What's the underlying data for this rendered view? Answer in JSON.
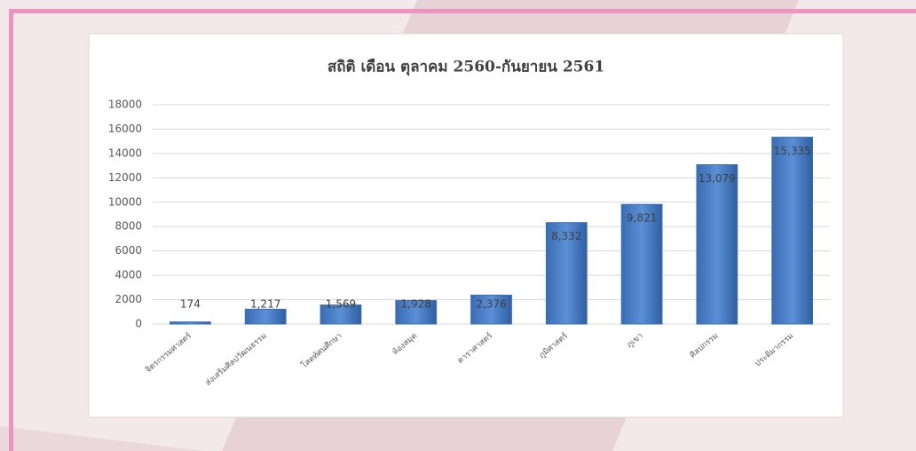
{
  "chart_data": {
    "type": "bar",
    "title": "สถิติ เดือน ตุลาคม 2560-กันยายน 2561",
    "categories": [
      "จิตรกรรมศาสตร์",
      "ส่งเสริมศิลปวัฒนธรรม",
      "โสตทัศนศึกษา",
      "ห้องสมุด",
      "ดาราศาสตร์",
      "ภูมิศาสตร์",
      "ภูเขา",
      "ศิลปกรรม",
      "ประติมากรรม"
    ],
    "values": [
      174,
      1217,
      1569,
      1928,
      2376,
      8332,
      9821,
      13079,
      15335
    ],
    "value_labels": [
      "174",
      "1,217",
      "1,569",
      "1,928",
      "2,376",
      "8,332",
      "9,821",
      "13,079",
      "15,335"
    ],
    "color": "#3b70b8",
    "ylim": [
      0,
      18000
    ],
    "yticks": [
      0,
      2000,
      4000,
      6000,
      8000,
      10000,
      12000,
      14000,
      16000,
      18000
    ],
    "grid": true
  }
}
